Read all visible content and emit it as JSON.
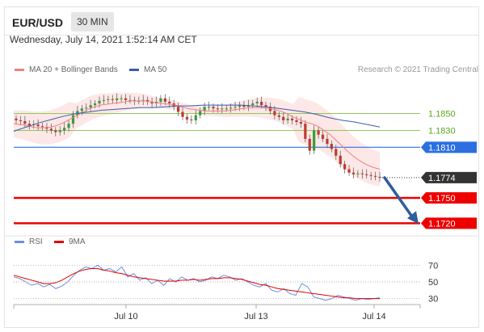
{
  "header": {
    "symbol": "EUR/USD",
    "interval": "30 MIN",
    "datetime": "Wednesday, July 14, 2021 1:52:14 AM CET"
  },
  "legend": {
    "ma20_label": "MA 20 + Bollinger Bands",
    "ma50_label": "MA 50",
    "credit": "Research © 2021 Trading Central"
  },
  "rsi_legend": {
    "rsi_label": "RSI",
    "ma9_label": "9MA"
  },
  "colors": {
    "ma20": "#f08080",
    "ma50": "#3a5ea8",
    "band_fill": "#fde1e1",
    "green_line": "#8dc85a",
    "green_text": "#5aa81e",
    "blue_line": "#2b6fe0",
    "red_line": "#ee0000",
    "current_label": "#333333",
    "arrow": "#2f5d9e",
    "candle_up": "#3a9a3a",
    "candle_down": "#c0392b",
    "rsi": "#6b8fdc",
    "rsi_ma": "#e00000"
  },
  "chart_data": [
    {
      "type": "line",
      "title": "EUR/USD",
      "subtitle": "30 MIN",
      "x_tick_labels": [
        "Jul 10",
        "Jul 13",
        "Jul 14"
      ],
      "ylim": [
        1.1705,
        1.1885
      ],
      "grid": false,
      "legend_position": "top-left",
      "levels": [
        {
          "value": 1.185,
          "label": "1.1850",
          "style": "green-thin"
        },
        {
          "value": 1.183,
          "label": "1.1830",
          "style": "green-thin"
        },
        {
          "value": 1.181,
          "label": "1.1810",
          "style": "blue-tag"
        },
        {
          "value": 1.1774,
          "label": "1.1774",
          "style": "current-price"
        },
        {
          "value": 1.175,
          "label": "1.1750",
          "style": "red-tag"
        },
        {
          "value": 1.172,
          "label": "1.1720",
          "style": "red-tag"
        }
      ],
      "price_close": [
        1.1842,
        1.1841,
        1.1838,
        1.1836,
        1.1837,
        1.1835,
        1.1834,
        1.1832,
        1.183,
        1.1828,
        1.183,
        1.1833,
        1.1838,
        1.1848,
        1.1853,
        1.1856,
        1.1857,
        1.186,
        1.1862,
        1.1865,
        1.1866,
        1.1867,
        1.1866,
        1.1868,
        1.1868,
        1.1866,
        1.1866,
        1.1865,
        1.1865,
        1.1866,
        1.1864,
        1.1862,
        1.1864,
        1.1868,
        1.1864,
        1.1862,
        1.1858,
        1.1852,
        1.1846,
        1.1843,
        1.1842,
        1.1848,
        1.1853,
        1.1858,
        1.1858,
        1.1856,
        1.1855,
        1.1856,
        1.1856,
        1.1857,
        1.1858,
        1.186,
        1.1858,
        1.186,
        1.1862,
        1.1864,
        1.186,
        1.1858,
        1.1853,
        1.1848,
        1.1846,
        1.1842,
        1.1844,
        1.1842,
        1.184,
        1.1838,
        1.182,
        1.1806,
        1.183,
        1.1825,
        1.182,
        1.1814,
        1.1808,
        1.18,
        1.179,
        1.1784,
        1.178,
        1.1778,
        1.1779,
        1.1778,
        1.1777,
        1.1776,
        1.1775,
        1.1774
      ],
      "series": [
        {
          "name": "MA 20 + Bollinger Bands",
          "values": [
            1.1838,
            1.1837,
            1.1836,
            1.1834,
            1.1833,
            1.1833,
            1.1834,
            1.1836,
            1.1839,
            1.1843,
            1.1847,
            1.1851,
            1.1855,
            1.1858,
            1.186,
            1.1861,
            1.1862,
            1.1863,
            1.1864,
            1.1865,
            1.1865,
            1.1865,
            1.1864,
            1.1863,
            1.1862,
            1.1861,
            1.186,
            1.1858,
            1.1856,
            1.1855,
            1.1854,
            1.1853,
            1.1853,
            1.1853,
            1.1853,
            1.1854,
            1.1855,
            1.1856,
            1.1857,
            1.1857,
            1.1857,
            1.1856,
            1.1855,
            1.1853,
            1.185,
            1.1846,
            1.1843,
            1.184,
            1.1838,
            1.1835,
            1.183,
            1.1825,
            1.1818,
            1.1811,
            1.1804,
            1.1798,
            1.1793,
            1.1789,
            1.1786,
            1.1784
          ],
          "x_start_index": 0
        },
        {
          "name": "MA 50",
          "values": [
            1.1829,
            1.1834,
            1.1839,
            1.1843,
            1.1847,
            1.185,
            1.1852,
            1.1854,
            1.1855,
            1.1856,
            1.1857,
            1.1857,
            1.1858,
            1.1859,
            1.1859,
            1.186,
            1.186,
            1.186,
            1.186,
            1.1859,
            1.1858,
            1.1856,
            1.1854,
            1.1852,
            1.1849,
            1.1845,
            1.1842,
            1.184,
            1.1837,
            1.1834
          ],
          "x_start_index": 0
        }
      ]
    },
    {
      "type": "line",
      "y_tick_labels": [
        "70",
        "50",
        "30"
      ],
      "ylim": [
        20,
        80
      ],
      "series": [
        {
          "name": "RSI",
          "values": [
            56,
            54,
            50,
            46,
            48,
            44,
            47,
            42,
            45,
            50,
            58,
            64,
            68,
            66,
            70,
            64,
            66,
            62,
            68,
            56,
            60,
            52,
            55,
            48,
            52,
            46,
            54,
            50,
            56,
            52,
            54,
            50,
            52,
            56,
            54,
            58,
            56,
            52,
            54,
            50,
            46,
            44,
            48,
            40,
            38,
            42,
            36,
            34,
            48,
            44,
            32,
            30,
            28,
            30,
            34,
            32,
            30,
            28,
            30,
            29,
            30,
            31
          ]
        },
        {
          "name": "9MA",
          "values": [
            58,
            56,
            54,
            52,
            50,
            48,
            48,
            49,
            52,
            56,
            60,
            63,
            65,
            66,
            66,
            64,
            63,
            61,
            60,
            58,
            56,
            55,
            54,
            53,
            52,
            51,
            51,
            51,
            52,
            52,
            53,
            52,
            53,
            54,
            54,
            55,
            55,
            54,
            53,
            51,
            49,
            47,
            46,
            44,
            42,
            41,
            40,
            39,
            38,
            37,
            36,
            35,
            34,
            33,
            32,
            31,
            31,
            30,
            30,
            30,
            30,
            30
          ]
        }
      ]
    }
  ]
}
